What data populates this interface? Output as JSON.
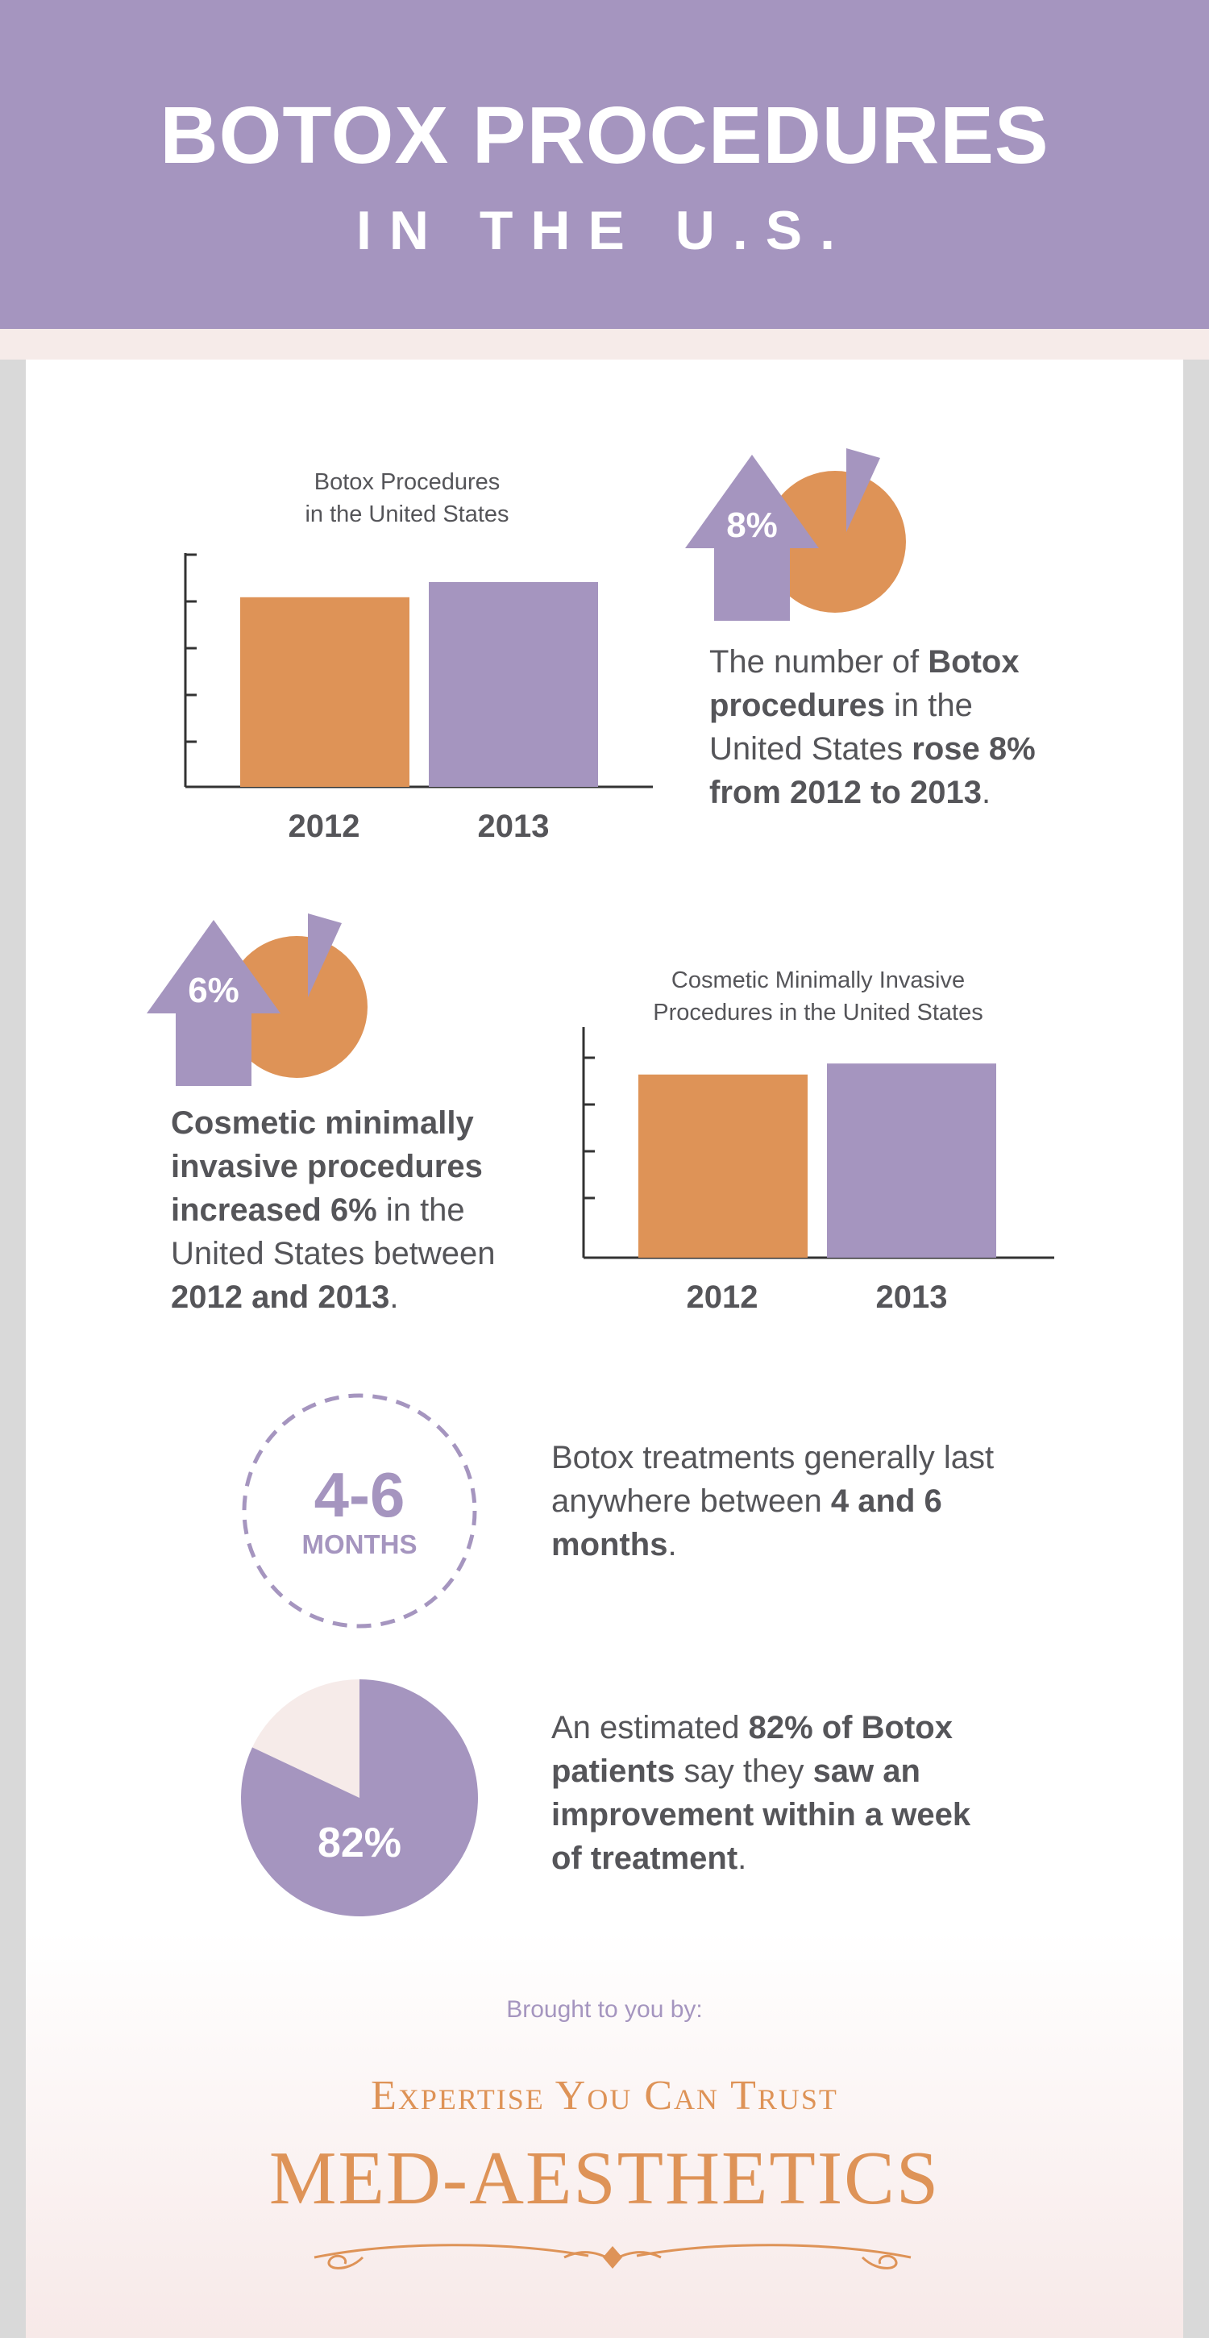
{
  "header": {
    "title": "BOTOX PROCEDURES",
    "subtitle": "IN THE U.S."
  },
  "colors": {
    "purple": "#a595bf",
    "orange": "#de9357",
    "text": "#555559",
    "blush": "#f6ebe9"
  },
  "chart_data": [
    {
      "type": "bar",
      "title_lines": [
        "Botox Procedures",
        "in the United States"
      ],
      "categories": [
        "2012",
        "2013"
      ],
      "values": [
        100,
        108
      ],
      "ylim": [
        0,
        125
      ],
      "grid": false,
      "bar_colors": [
        "#de9357",
        "#a595bf"
      ]
    },
    {
      "type": "bar",
      "title_lines": [
        "Cosmetic Minimally Invasive",
        "Procedures in the United States"
      ],
      "categories": [
        "2012",
        "2013"
      ],
      "values": [
        100,
        106
      ],
      "ylim": [
        0,
        125
      ],
      "grid": false,
      "bar_colors": [
        "#de9357",
        "#a595bf"
      ]
    },
    {
      "type": "pie",
      "values": [
        82,
        18
      ],
      "label": "82%",
      "colors": [
        "#a595bf",
        "#f6ebe9"
      ]
    }
  ],
  "stats": {
    "botox_growth": {
      "badge": "8%",
      "icon": "up-arrow-pie-icon",
      "text_parts": [
        "The number of ",
        "Botox procedures",
        " in the United States ",
        "rose 8% from 2012 to 2013",
        "."
      ]
    },
    "minimally_invasive_growth": {
      "badge": "6%",
      "icon": "up-arrow-pie-icon",
      "text_parts": [
        "Cosmetic minimally invasive procedures increased 6%",
        " in the United States between ",
        "2012 and 2013",
        "."
      ]
    },
    "duration": {
      "value": "4-6",
      "unit": "MONTHS",
      "text_parts": [
        "Botox treatments generally last anywhere between ",
        "4 and 6 months",
        "."
      ]
    },
    "satisfaction": {
      "text_parts": [
        "An estimated ",
        "82% of Botox patients",
        " say they ",
        "saw an improvement within a week of treatment",
        "."
      ]
    }
  },
  "footer": {
    "brought_by": "Brought to you by:",
    "tagline": "Expertise You Can Trust",
    "brand": "MED-AESTHETICS",
    "ornament_icon": "flourish-ornament-icon"
  }
}
